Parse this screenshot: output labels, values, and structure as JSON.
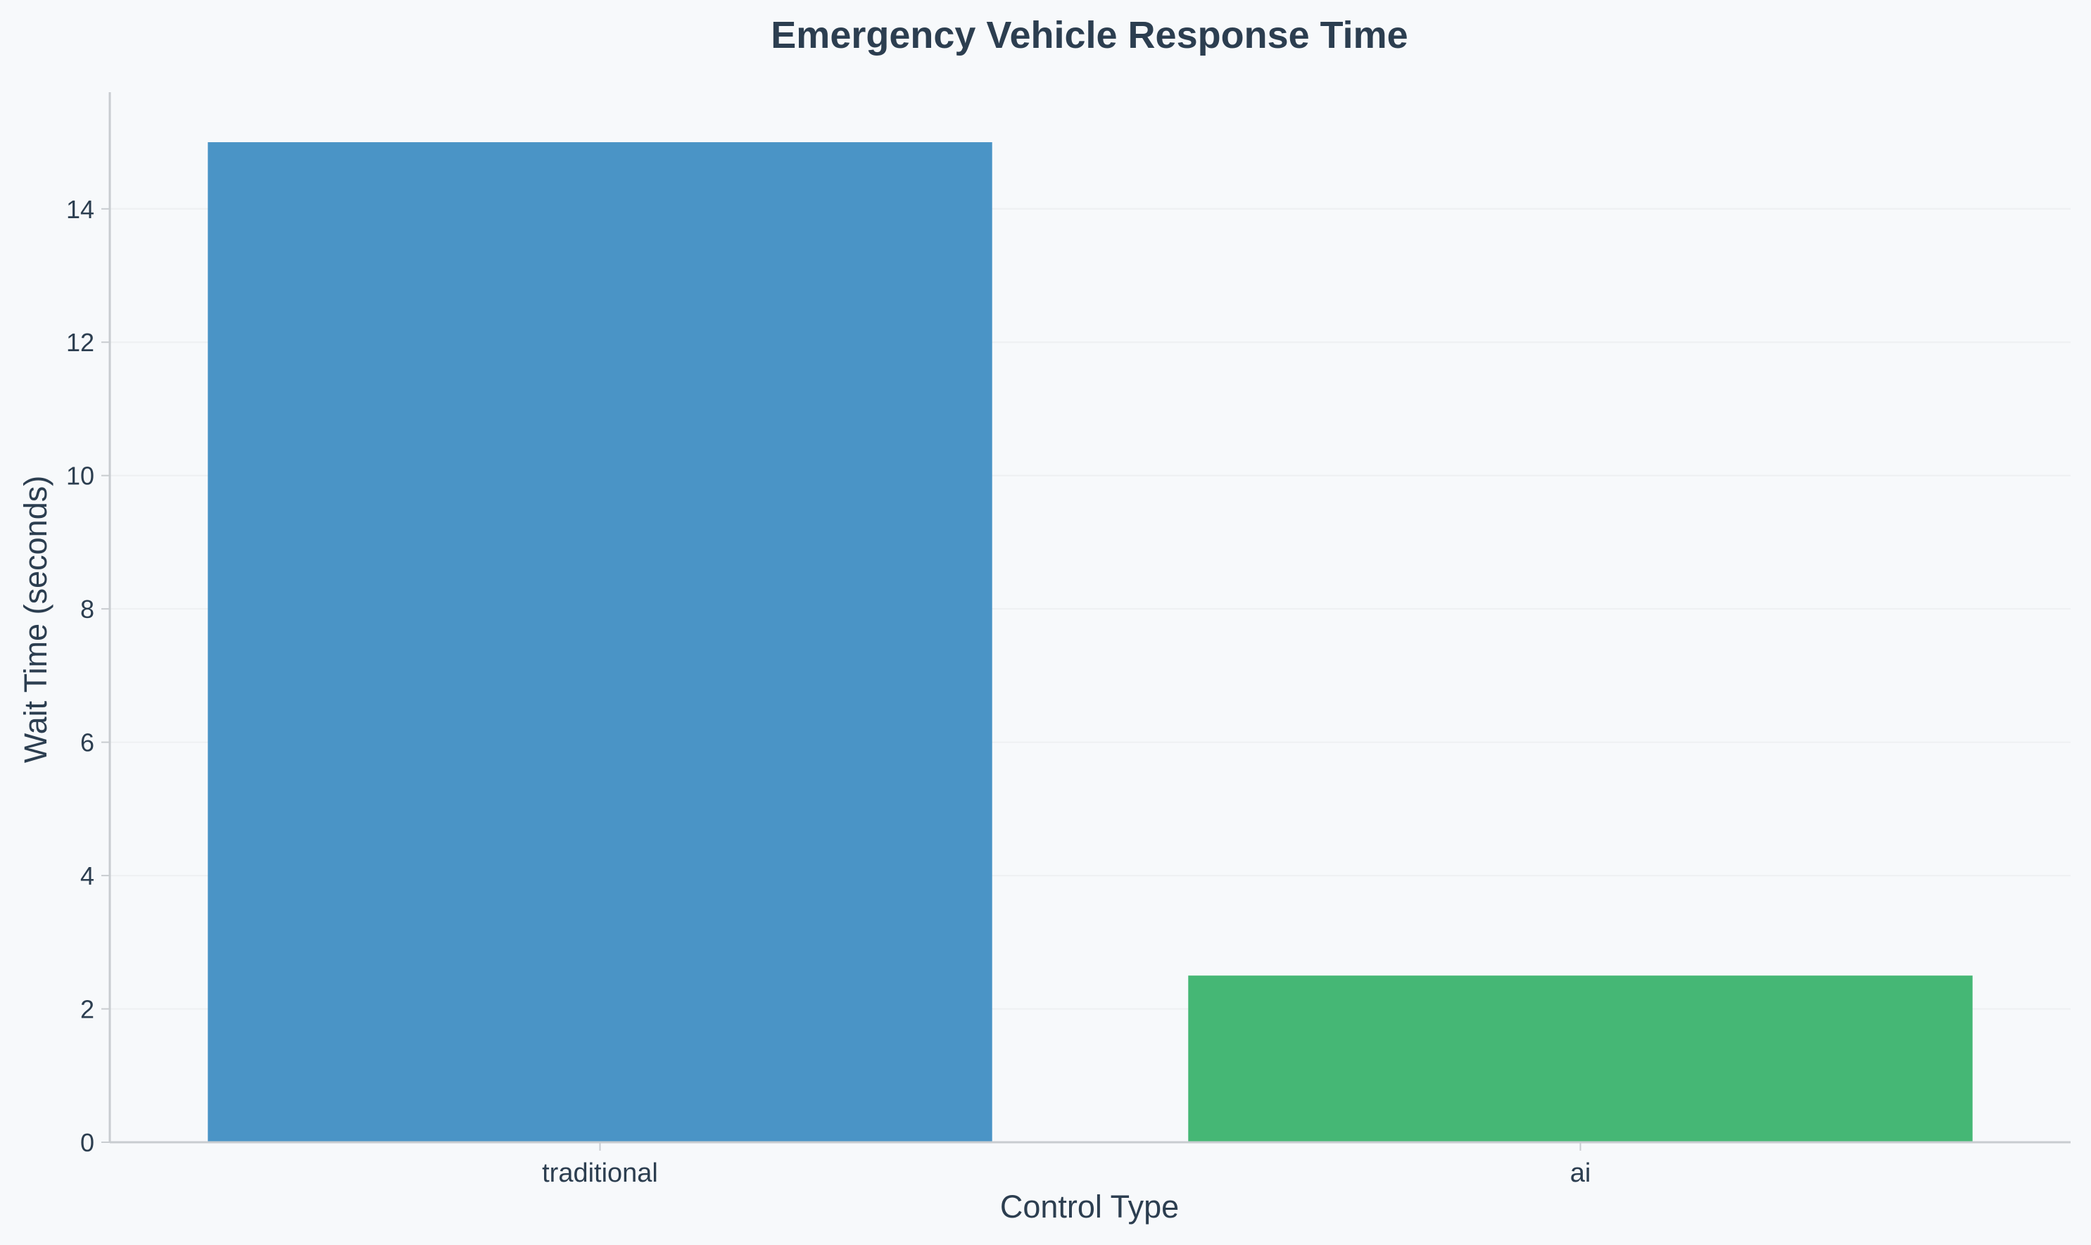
{
  "chart_data": {
    "type": "bar",
    "title": "Emergency Vehicle Response Time",
    "xlabel": "Control Type",
    "ylabel": "Wait Time (seconds)",
    "categories": [
      "traditional",
      "ai"
    ],
    "values": [
      15,
      2.5
    ],
    "bar_colors": [
      "#4a94c6",
      "#45b775"
    ],
    "ylim": [
      0,
      15.75
    ],
    "yticks": [
      0,
      2,
      4,
      6,
      8,
      10,
      12,
      14
    ],
    "ytick_labels": [
      "0",
      "2",
      "4",
      "6",
      "8",
      "10",
      "12",
      "14"
    ],
    "grid": "y-only, faint",
    "legend": "none",
    "colors": {
      "background": "#f7f9fb",
      "text": "#2c3e50",
      "axis": "#c8ccd0",
      "grid": "#eef0f2"
    }
  }
}
